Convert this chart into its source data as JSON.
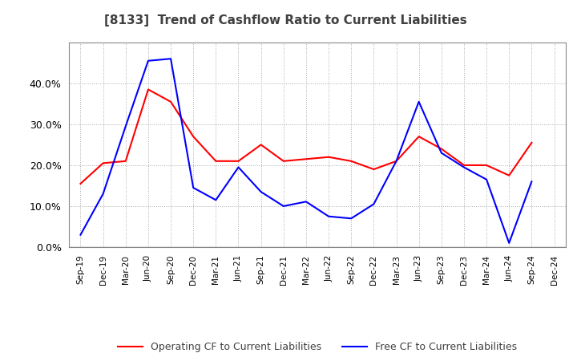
{
  "title": "[8133]  Trend of Cashflow Ratio to Current Liabilities",
  "x_labels": [
    "Sep-19",
    "Dec-19",
    "Mar-20",
    "Jun-20",
    "Sep-20",
    "Dec-20",
    "Mar-21",
    "Jun-21",
    "Sep-21",
    "Dec-21",
    "Mar-22",
    "Jun-22",
    "Sep-22",
    "Dec-22",
    "Mar-23",
    "Jun-23",
    "Sep-23",
    "Dec-23",
    "Mar-24",
    "Jun-24",
    "Sep-24",
    "Dec-24"
  ],
  "operating_cf": [
    0.155,
    0.205,
    0.21,
    0.385,
    0.355,
    0.27,
    0.21,
    0.21,
    0.25,
    0.21,
    0.215,
    0.22,
    0.21,
    0.19,
    0.21,
    0.27,
    0.24,
    0.2,
    0.2,
    0.175,
    0.255,
    null
  ],
  "free_cf": [
    0.03,
    0.13,
    0.295,
    0.455,
    0.46,
    0.145,
    0.115,
    0.195,
    0.135,
    0.1,
    0.111,
    0.075,
    0.07,
    0.105,
    0.21,
    0.355,
    0.23,
    0.195,
    0.165,
    0.01,
    0.16,
    null
  ],
  "ylim": [
    0.0,
    0.5
  ],
  "yticks": [
    0.0,
    0.1,
    0.2,
    0.3,
    0.4
  ],
  "operating_color": "#ff0000",
  "free_color": "#0000ff",
  "background_color": "#ffffff",
  "plot_bg_color": "#ffffff",
  "grid_color": "#aaaaaa",
  "title_color": "#404040",
  "legend_labels": [
    "Operating CF to Current Liabilities",
    "Free CF to Current Liabilities"
  ]
}
